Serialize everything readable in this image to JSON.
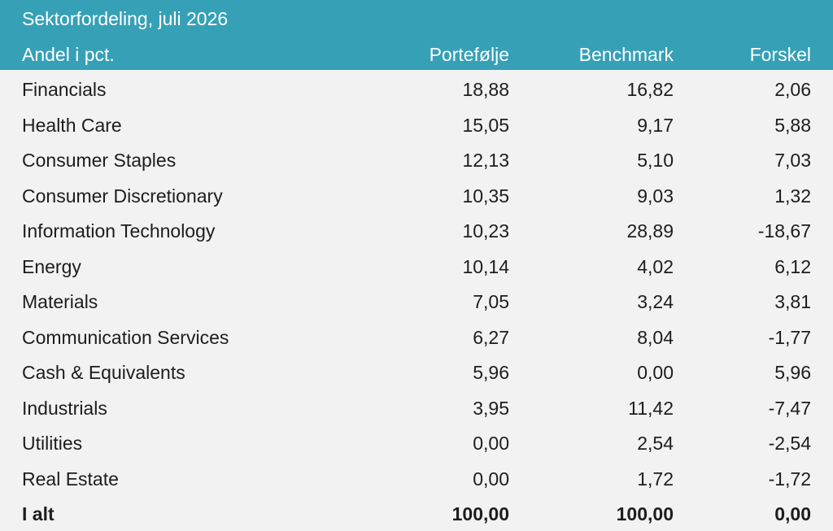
{
  "title": "Sektorfordeling, juli 2026",
  "columns": {
    "label": "Andel i pct.",
    "portfolio": "Portefølje",
    "benchmark": "Benchmark",
    "difference": "Forskel"
  },
  "rows": [
    {
      "sector": "Financials",
      "portfolio": "18,88",
      "benchmark": "16,82",
      "difference": "2,06"
    },
    {
      "sector": "Health Care",
      "portfolio": "15,05",
      "benchmark": "9,17",
      "difference": "5,88"
    },
    {
      "sector": "Consumer Staples",
      "portfolio": "12,13",
      "benchmark": "5,10",
      "difference": "7,03"
    },
    {
      "sector": "Consumer Discretionary",
      "portfolio": "10,35",
      "benchmark": "9,03",
      "difference": "1,32"
    },
    {
      "sector": "Information Technology",
      "portfolio": "10,23",
      "benchmark": "28,89",
      "difference": "-18,67"
    },
    {
      "sector": "Energy",
      "portfolio": "10,14",
      "benchmark": "4,02",
      "difference": "6,12"
    },
    {
      "sector": "Materials",
      "portfolio": "7,05",
      "benchmark": "3,24",
      "difference": "3,81"
    },
    {
      "sector": "Communication Services",
      "portfolio": "6,27",
      "benchmark": "8,04",
      "difference": "-1,77"
    },
    {
      "sector": "Cash & Equivalents",
      "portfolio": "5,96",
      "benchmark": "0,00",
      "difference": "5,96"
    },
    {
      "sector": "Industrials",
      "portfolio": "3,95",
      "benchmark": "11,42",
      "difference": "-7,47"
    },
    {
      "sector": "Utilities",
      "portfolio": "0,00",
      "benchmark": "2,54",
      "difference": "-2,54"
    },
    {
      "sector": "Real Estate",
      "portfolio": "0,00",
      "benchmark": "1,72",
      "difference": "-1,72"
    }
  ],
  "total": {
    "label": "I alt",
    "portfolio": "100,00",
    "benchmark": "100,00",
    "difference": "0,00"
  },
  "colors": {
    "header_background": "#35a0b6",
    "header_text": "#ffffff",
    "body_background": "#f2f2f2",
    "body_text": "#1d1d1d"
  }
}
